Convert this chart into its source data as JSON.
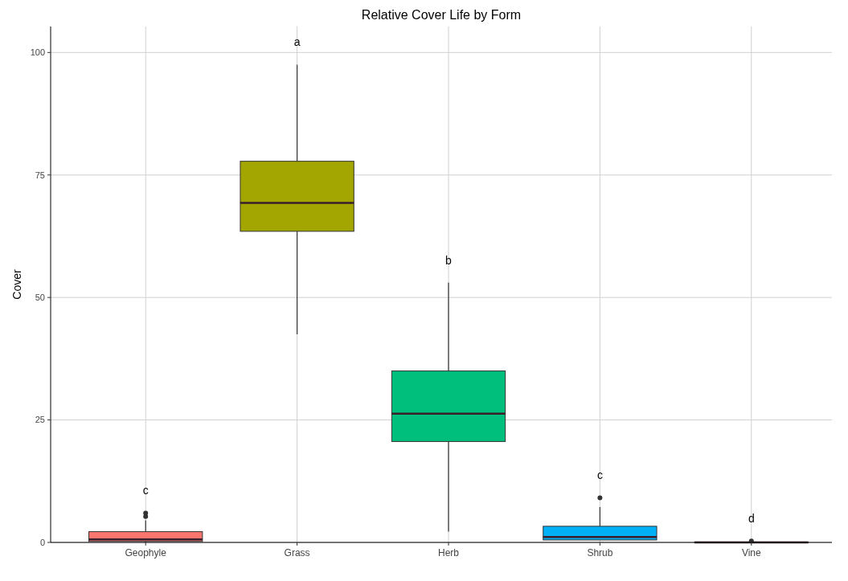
{
  "chart_data": {
    "type": "box",
    "title": "Relative Cover Life by Form",
    "ylabel": "Cover",
    "categories": [
      "Geophyle",
      "Grass",
      "Herb",
      "Shrub",
      "Vine"
    ],
    "colors": [
      "#f8766d",
      "#a3a500",
      "#00bf7d",
      "#00b0f6",
      "#e76bf3"
    ],
    "boxes": [
      {
        "low": 0,
        "q1": 0.2,
        "median": 0.6,
        "q3": 2.2,
        "high": 4.5,
        "outliers": [
          5.3,
          6
        ]
      },
      {
        "low": 42.5,
        "q1": 63.5,
        "median": 69.3,
        "q3": 77.8,
        "high": 97.5
      },
      {
        "low": 2.2,
        "q1": 20.6,
        "median": 26.3,
        "q3": 35,
        "high": 53
      },
      {
        "low": 0.5,
        "q1": 0.5,
        "median": 1.1,
        "q3": 3.3,
        "high": 7.2,
        "outliers": [
          9.1
        ]
      },
      {
        "low": 0,
        "q1": 0,
        "median": 0,
        "q3": 0.1,
        "high": 0.2,
        "outliers": [
          0.3
        ]
      }
    ],
    "ylim": [
      0,
      105.3
    ],
    "yticks": [
      0,
      25,
      50,
      75,
      100
    ],
    "grid": true,
    "annotations": [
      "c",
      "a",
      "b",
      "c",
      "d"
    ]
  }
}
